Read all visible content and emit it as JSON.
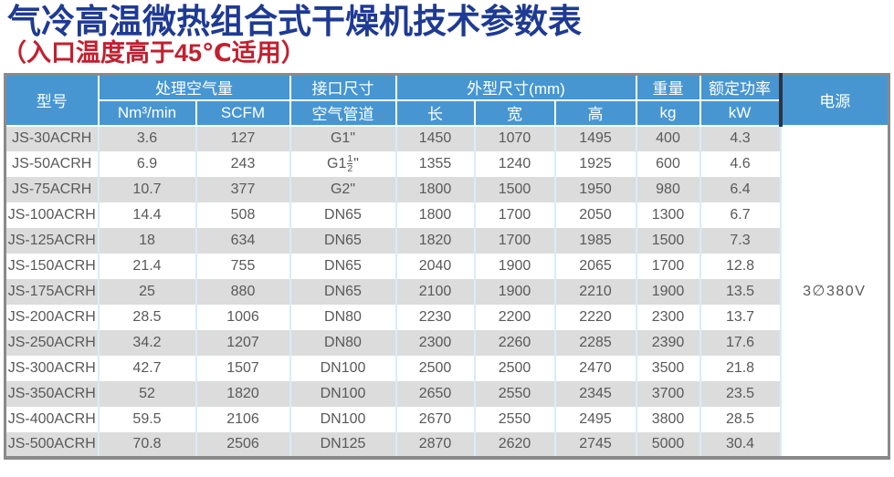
{
  "title": "气冷高温微热组合式干燥机技术参数表",
  "subtitle": "（入口温度高于45℃适用）",
  "colors": {
    "title_blue": "#1e3a93",
    "subtitle_red": "#c1202f",
    "header_bg": "#4796d2",
    "stripe_gray": "#dcdcdc",
    "cell_divider_blue": "#d9ecf8",
    "dark_divider": "#2d3442",
    "outer_border": "#8a8a8a"
  },
  "table": {
    "headers": {
      "model": "型号",
      "air_volume": "处理空气量",
      "air_volume_units": [
        "Nm³/min",
        "SCFM"
      ],
      "port_size": "接口尺寸",
      "port_sub": "空气管道",
      "dimensions": "外型尺寸(mm)",
      "dimension_subs": [
        "长",
        "宽",
        "高"
      ],
      "weight": "重量",
      "weight_unit": "kg",
      "rated_power": "额定功率",
      "rated_power_unit": "kW",
      "power_supply": "电源"
    },
    "power_supply_value": "3∅380V",
    "rows": [
      {
        "model": "JS-30ACRH",
        "nm3": "3.6",
        "scfm": "127",
        "pipe": "G1\"",
        "len": "1450",
        "wid": "1070",
        "hgt": "1495",
        "kg": "400",
        "kw": "4.3"
      },
      {
        "model": "JS-50ACRH",
        "nm3": "6.9",
        "scfm": "243",
        "pipe": "G1-1/2\"",
        "len": "1355",
        "wid": "1240",
        "hgt": "1925",
        "kg": "600",
        "kw": "4.6"
      },
      {
        "model": "JS-75ACRH",
        "nm3": "10.7",
        "scfm": "377",
        "pipe": "G2\"",
        "len": "1800",
        "wid": "1500",
        "hgt": "1950",
        "kg": "980",
        "kw": "6.4"
      },
      {
        "model": "JS-100ACRH",
        "nm3": "14.4",
        "scfm": "508",
        "pipe": "DN65",
        "len": "1800",
        "wid": "1700",
        "hgt": "2050",
        "kg": "1300",
        "kw": "6.7"
      },
      {
        "model": "JS-125ACRH",
        "nm3": "18",
        "scfm": "634",
        "pipe": "DN65",
        "len": "1820",
        "wid": "1700",
        "hgt": "1985",
        "kg": "1500",
        "kw": "7.3"
      },
      {
        "model": "JS-150ACRH",
        "nm3": "21.4",
        "scfm": "755",
        "pipe": "DN65",
        "len": "2040",
        "wid": "1900",
        "hgt": "2065",
        "kg": "1700",
        "kw": "12.8"
      },
      {
        "model": "JS-175ACRH",
        "nm3": "25",
        "scfm": "880",
        "pipe": "DN65",
        "len": "2100",
        "wid": "1900",
        "hgt": "2210",
        "kg": "1900",
        "kw": "13.5"
      },
      {
        "model": "JS-200ACRH",
        "nm3": "28.5",
        "scfm": "1006",
        "pipe": "DN80",
        "len": "2230",
        "wid": "2200",
        "hgt": "2220",
        "kg": "2300",
        "kw": "13.7"
      },
      {
        "model": "JS-250ACRH",
        "nm3": "34.2",
        "scfm": "1207",
        "pipe": "DN80",
        "len": "2300",
        "wid": "2260",
        "hgt": "2285",
        "kg": "2390",
        "kw": "17.6"
      },
      {
        "model": "JS-300ACRH",
        "nm3": "42.7",
        "scfm": "1507",
        "pipe": "DN100",
        "len": "2500",
        "wid": "2500",
        "hgt": "2470",
        "kg": "3500",
        "kw": "21.8"
      },
      {
        "model": "JS-350ACRH",
        "nm3": "52",
        "scfm": "1820",
        "pipe": "DN100",
        "len": "2650",
        "wid": "2550",
        "hgt": "2345",
        "kg": "3700",
        "kw": "23.5"
      },
      {
        "model": "JS-400ACRH",
        "nm3": "59.5",
        "scfm": "2106",
        "pipe": "DN100",
        "len": "2670",
        "wid": "2550",
        "hgt": "2495",
        "kg": "3800",
        "kw": "28.5"
      },
      {
        "model": "JS-500ACRH",
        "nm3": "70.8",
        "scfm": "2506",
        "pipe": "DN125",
        "len": "2870",
        "wid": "2620",
        "hgt": "2745",
        "kg": "5000",
        "kw": "30.4"
      }
    ]
  }
}
